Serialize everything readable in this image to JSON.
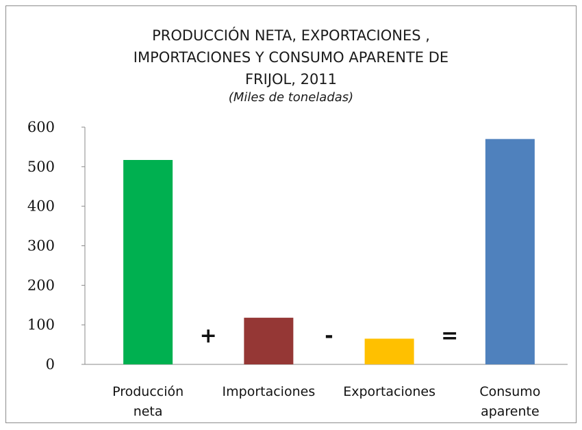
{
  "chart_data": {
    "type": "bar",
    "title_lines": [
      "PRODUCCIÓN NETA, EXPORTACIONES ,",
      "IMPORTACIONES  Y CONSUMO APARENTE  DE",
      "FRIJOL, 2011"
    ],
    "subtitle": "(Miles de toneladas)",
    "categories": [
      [
        "Producción",
        "neta"
      ],
      [
        "Importaciones"
      ],
      [
        "Exportaciones"
      ],
      [
        "Consumo",
        "aparente"
      ]
    ],
    "values": [
      517,
      118,
      65,
      570
    ],
    "colors": [
      "#00b050",
      "#953735",
      "#ffc000",
      "#4f81bd"
    ],
    "operators": [
      "+",
      "-",
      "="
    ],
    "ylim": [
      0,
      600
    ],
    "yticks": [
      0,
      100,
      200,
      300,
      400,
      500,
      600
    ],
    "xlabel": "",
    "ylabel": "",
    "grid": false,
    "legend": "none"
  }
}
